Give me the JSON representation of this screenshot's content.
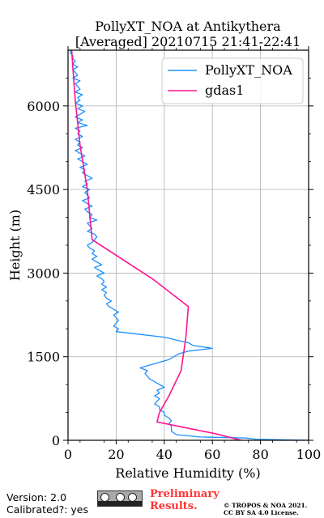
{
  "footer": {
    "version": "Version: 2.0",
    "calibrated": "Calibrated?: yes",
    "preliminary_line1": "Preliminary",
    "preliminary_line2": "Results.",
    "copyright_line1": "© TROPOS & NOA 2021.",
    "copyright_line2": "CC BY SA 4.0 License.",
    "license_badge_icon": "cc-by-sa-icon"
  },
  "chart_data": {
    "type": "line",
    "title": "PollyXT_NOA at Antikythera",
    "subtitle": "[Averaged] 20210715 21:41-22:41",
    "xlabel": "Relative Humidity (%)",
    "ylabel": "Height (m)",
    "xlim": [
      0,
      100
    ],
    "ylim": [
      0,
      7000
    ],
    "xticks": [
      0,
      20,
      40,
      60,
      80,
      100
    ],
    "yticks": [
      0,
      1500,
      3000,
      4500,
      6000
    ],
    "grid": true,
    "legend_position": "upper-right",
    "series": [
      {
        "name": "PollyXT_NOA",
        "color": "#1e90ff",
        "points": [
          [
            100,
            0
          ],
          [
            78,
            20
          ],
          [
            74,
            40
          ],
          [
            55,
            60
          ],
          [
            45,
            100
          ],
          [
            43,
            160
          ],
          [
            43,
            250
          ],
          [
            42,
            300
          ],
          [
            43,
            350
          ],
          [
            42,
            400
          ],
          [
            40,
            450
          ],
          [
            40,
            500
          ],
          [
            38,
            550
          ],
          [
            38,
            600
          ],
          [
            36,
            650
          ],
          [
            37,
            700
          ],
          [
            38,
            750
          ],
          [
            36,
            800
          ],
          [
            38,
            850
          ],
          [
            37,
            900
          ],
          [
            40,
            950
          ],
          [
            38,
            1000
          ],
          [
            36,
            1050
          ],
          [
            34,
            1100
          ],
          [
            33,
            1150
          ],
          [
            32,
            1200
          ],
          [
            33,
            1250
          ],
          [
            30,
            1300
          ],
          [
            34,
            1350
          ],
          [
            38,
            1400
          ],
          [
            42,
            1450
          ],
          [
            44,
            1500
          ],
          [
            46,
            1550
          ],
          [
            50,
            1600
          ],
          [
            60,
            1650
          ],
          [
            52,
            1700
          ],
          [
            50,
            1750
          ],
          [
            45,
            1800
          ],
          [
            40,
            1850
          ],
          [
            30,
            1900
          ],
          [
            20,
            1950
          ],
          [
            21,
            2000
          ],
          [
            19,
            2050
          ],
          [
            20,
            2100
          ],
          [
            21,
            2150
          ],
          [
            20,
            2200
          ],
          [
            19,
            2250
          ],
          [
            21,
            2300
          ],
          [
            19,
            2350
          ],
          [
            17,
            2400
          ],
          [
            16,
            2450
          ],
          [
            18,
            2500
          ],
          [
            16,
            2550
          ],
          [
            15,
            2600
          ],
          [
            16,
            2650
          ],
          [
            14,
            2700
          ],
          [
            16,
            2750
          ],
          [
            14,
            2800
          ],
          [
            15,
            2850
          ],
          [
            14,
            2900
          ],
          [
            12,
            2950
          ],
          [
            15,
            3000
          ],
          [
            13,
            3050
          ],
          [
            11,
            3100
          ],
          [
            14,
            3150
          ],
          [
            12,
            3200
          ],
          [
            10,
            3250
          ],
          [
            12,
            3300
          ],
          [
            10,
            3350
          ],
          [
            11,
            3400
          ],
          [
            9,
            3450
          ],
          [
            8,
            3500
          ],
          [
            10,
            3550
          ],
          [
            11,
            3600
          ],
          [
            12,
            3650
          ],
          [
            11,
            3700
          ],
          [
            8,
            3750
          ],
          [
            10,
            3800
          ],
          [
            9,
            3850
          ],
          [
            8,
            3900
          ],
          [
            12,
            3950
          ],
          [
            9,
            4000
          ],
          [
            10,
            4050
          ],
          [
            8,
            4100
          ],
          [
            7,
            4150
          ],
          [
            10,
            4200
          ],
          [
            8,
            4250
          ],
          [
            6,
            4300
          ],
          [
            9,
            4350
          ],
          [
            8,
            4400
          ],
          [
            7,
            4450
          ],
          [
            9,
            4500
          ],
          [
            6,
            4550
          ],
          [
            8,
            4600
          ],
          [
            7,
            4650
          ],
          [
            10,
            4700
          ],
          [
            8,
            4750
          ],
          [
            6,
            4800
          ],
          [
            7,
            4850
          ],
          [
            5,
            4900
          ],
          [
            8,
            4950
          ],
          [
            6,
            5000
          ],
          [
            4,
            5050
          ],
          [
            7,
            5100
          ],
          [
            5,
            5150
          ],
          [
            3,
            5200
          ],
          [
            6,
            5250
          ],
          [
            4,
            5300
          ],
          [
            5,
            5350
          ],
          [
            3,
            5400
          ],
          [
            6,
            5450
          ],
          [
            4,
            5500
          ],
          [
            5,
            5550
          ],
          [
            3,
            5600
          ],
          [
            8,
            5650
          ],
          [
            4,
            5700
          ],
          [
            6,
            5750
          ],
          [
            3,
            5800
          ],
          [
            5,
            5850
          ],
          [
            7,
            5900
          ],
          [
            4,
            5950
          ],
          [
            6,
            6000
          ],
          [
            3,
            6050
          ],
          [
            5,
            6100
          ],
          [
            4,
            6150
          ],
          [
            6,
            6200
          ],
          [
            3,
            6250
          ],
          [
            5,
            6300
          ],
          [
            4,
            6350
          ],
          [
            3,
            6400
          ],
          [
            5,
            6450
          ],
          [
            2,
            6500
          ],
          [
            4,
            6550
          ],
          [
            3,
            6600
          ],
          [
            2,
            6650
          ],
          [
            4,
            6700
          ],
          [
            2,
            6750
          ],
          [
            3,
            6800
          ],
          [
            2,
            6850
          ],
          [
            2,
            6900
          ],
          [
            1,
            6950
          ],
          [
            1,
            7000
          ]
        ]
      },
      {
        "name": "gdas1",
        "color": "#ff1493",
        "points": [
          [
            72,
            0
          ],
          [
            61,
            120
          ],
          [
            37,
            330
          ],
          [
            38,
            500
          ],
          [
            42,
            800
          ],
          [
            47,
            1250
          ],
          [
            49,
            1850
          ],
          [
            50,
            2400
          ],
          [
            35,
            2900
          ],
          [
            10,
            3600
          ],
          [
            8,
            4500
          ],
          [
            5,
            5300
          ],
          [
            3,
            6100
          ],
          [
            2,
            6700
          ],
          [
            1.5,
            7000
          ]
        ]
      }
    ]
  }
}
